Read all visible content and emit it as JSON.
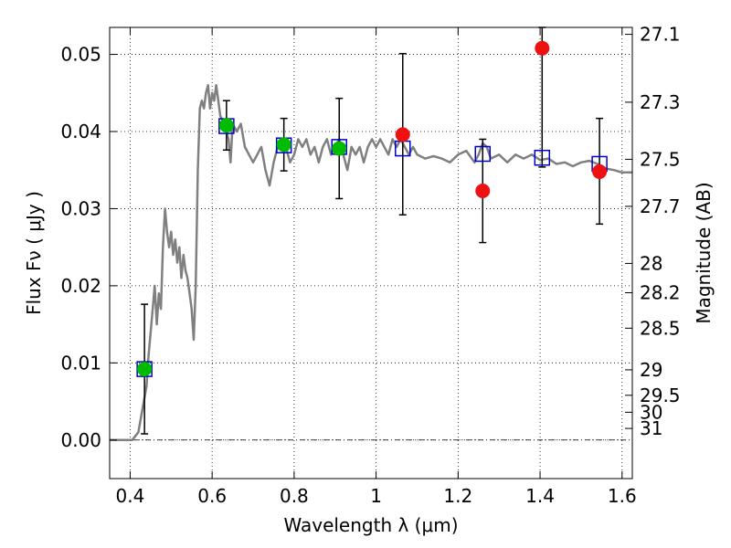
{
  "chart_data": {
    "type": "scatter",
    "xlabel": "Wavelength  λ (μm)",
    "ylabel": "Flux  Fν  ( μJy )",
    "y2label": "Magnitude (AB)",
    "xlim": [
      0.35,
      1.625
    ],
    "ylim": [
      -0.005,
      0.0535
    ],
    "grid": true,
    "x_ticks": [
      0.4,
      0.6,
      0.8,
      1.0,
      1.2,
      1.4,
      1.6
    ],
    "x_tick_labels": [
      "0.4",
      "0.6",
      "0.8",
      "1",
      "1.2",
      "1.4",
      "1.6"
    ],
    "y_ticks": [
      0.0,
      0.01,
      0.02,
      0.03,
      0.04,
      0.05
    ],
    "y_tick_labels": [
      "0.00",
      "0.01",
      "0.02",
      "0.03",
      "0.04",
      "0.05"
    ],
    "y2_ticks": [
      {
        "label": "27.1",
        "flux": 0.0526
      },
      {
        "label": "27.3",
        "flux": 0.0438
      },
      {
        "label": "27.5",
        "flux": 0.0364
      },
      {
        "label": "27.7",
        "flux": 0.0303
      },
      {
        "label": "28",
        "flux": 0.0229
      },
      {
        "label": "28.2",
        "flux": 0.0191
      },
      {
        "label": "28.5",
        "flux": 0.0145
      },
      {
        "label": "29",
        "flux": 0.0091
      },
      {
        "label": "29.5",
        "flux": 0.0058
      },
      {
        "label": "30",
        "flux": 0.0036
      },
      {
        "label": "31",
        "flux": 0.0015
      }
    ],
    "model_spectrum": {
      "color": "#808080",
      "x": [
        0.35,
        0.405,
        0.42,
        0.43,
        0.44,
        0.445,
        0.45,
        0.455,
        0.46,
        0.465,
        0.47,
        0.475,
        0.48,
        0.485,
        0.49,
        0.495,
        0.5,
        0.505,
        0.51,
        0.515,
        0.52,
        0.525,
        0.53,
        0.535,
        0.54,
        0.545,
        0.55,
        0.555,
        0.56,
        0.565,
        0.57,
        0.575,
        0.58,
        0.585,
        0.59,
        0.595,
        0.6,
        0.605,
        0.61,
        0.615,
        0.62,
        0.63,
        0.64,
        0.645,
        0.65,
        0.66,
        0.67,
        0.68,
        0.69,
        0.7,
        0.71,
        0.72,
        0.73,
        0.74,
        0.75,
        0.76,
        0.77,
        0.78,
        0.79,
        0.8,
        0.81,
        0.82,
        0.83,
        0.84,
        0.85,
        0.86,
        0.87,
        0.88,
        0.89,
        0.9,
        0.91,
        0.92,
        0.93,
        0.94,
        0.95,
        0.96,
        0.97,
        0.98,
        0.99,
        1.0,
        1.01,
        1.02,
        1.03,
        1.04,
        1.05,
        1.06,
        1.07,
        1.08,
        1.09,
        1.1,
        1.12,
        1.14,
        1.16,
        1.18,
        1.2,
        1.22,
        1.24,
        1.25,
        1.26,
        1.27,
        1.28,
        1.3,
        1.32,
        1.34,
        1.36,
        1.38,
        1.4,
        1.42,
        1.44,
        1.46,
        1.48,
        1.5,
        1.52,
        1.54,
        1.56,
        1.58,
        1.6,
        1.625
      ],
      "y": [
        0.0,
        0.0,
        0.001,
        0.004,
        0.007,
        0.011,
        0.014,
        0.017,
        0.02,
        0.015,
        0.019,
        0.017,
        0.025,
        0.03,
        0.027,
        0.025,
        0.027,
        0.024,
        0.026,
        0.023,
        0.025,
        0.021,
        0.024,
        0.022,
        0.021,
        0.019,
        0.017,
        0.013,
        0.02,
        0.035,
        0.043,
        0.044,
        0.043,
        0.045,
        0.046,
        0.043,
        0.045,
        0.044,
        0.046,
        0.044,
        0.042,
        0.041,
        0.039,
        0.036,
        0.041,
        0.04,
        0.041,
        0.038,
        0.037,
        0.036,
        0.037,
        0.038,
        0.035,
        0.033,
        0.036,
        0.038,
        0.039,
        0.038,
        0.036,
        0.037,
        0.039,
        0.038,
        0.039,
        0.037,
        0.038,
        0.036,
        0.038,
        0.039,
        0.037,
        0.038,
        0.039,
        0.037,
        0.035,
        0.038,
        0.037,
        0.038,
        0.036,
        0.038,
        0.039,
        0.038,
        0.039,
        0.038,
        0.037,
        0.039,
        0.038,
        0.039,
        0.038,
        0.037,
        0.038,
        0.037,
        0.0365,
        0.0368,
        0.0365,
        0.036,
        0.037,
        0.0375,
        0.036,
        0.037,
        0.0385,
        0.038,
        0.0365,
        0.037,
        0.036,
        0.037,
        0.0365,
        0.037,
        0.0363,
        0.0365,
        0.0358,
        0.036,
        0.0355,
        0.036,
        0.0362,
        0.0358,
        0.0352,
        0.035,
        0.0347,
        0.0347
      ]
    },
    "error_bars": [
      {
        "x": 0.435,
        "low": 0.0008,
        "high": 0.0176
      },
      {
        "x": 0.635,
        "low": 0.0376,
        "high": 0.044
      },
      {
        "x": 0.775,
        "low": 0.0349,
        "high": 0.0417
      },
      {
        "x": 0.91,
        "low": 0.0313,
        "high": 0.0443
      },
      {
        "x": 1.065,
        "low": 0.0292,
        "high": 0.0501
      },
      {
        "x": 1.26,
        "low": 0.0256,
        "high": 0.039
      },
      {
        "x": 1.405,
        "low": 0.0354,
        "high": 0.0535
      },
      {
        "x": 1.545,
        "low": 0.028,
        "high": 0.0417
      }
    ],
    "series": [
      {
        "marker": "square",
        "color": "#0000cc",
        "points": [
          {
            "x": 0.435,
            "y": 0.0092
          },
          {
            "x": 0.635,
            "y": 0.0407
          },
          {
            "x": 0.775,
            "y": 0.0382
          },
          {
            "x": 0.91,
            "y": 0.038
          },
          {
            "x": 1.065,
            "y": 0.0378
          },
          {
            "x": 1.26,
            "y": 0.0371
          },
          {
            "x": 1.405,
            "y": 0.0366
          },
          {
            "x": 1.545,
            "y": 0.0358
          }
        ]
      },
      {
        "marker": "circle",
        "color": "#00bb00",
        "points": [
          {
            "x": 0.435,
            "y": 0.0092
          },
          {
            "x": 0.635,
            "y": 0.0408
          },
          {
            "x": 0.775,
            "y": 0.0383
          },
          {
            "x": 0.91,
            "y": 0.0378
          }
        ]
      },
      {
        "marker": "circle",
        "color": "#ee1111",
        "points": [
          {
            "x": 1.065,
            "y": 0.0396
          },
          {
            "x": 1.26,
            "y": 0.0323
          },
          {
            "x": 1.405,
            "y": 0.0508
          },
          {
            "x": 1.545,
            "y": 0.0348
          }
        ]
      }
    ]
  }
}
